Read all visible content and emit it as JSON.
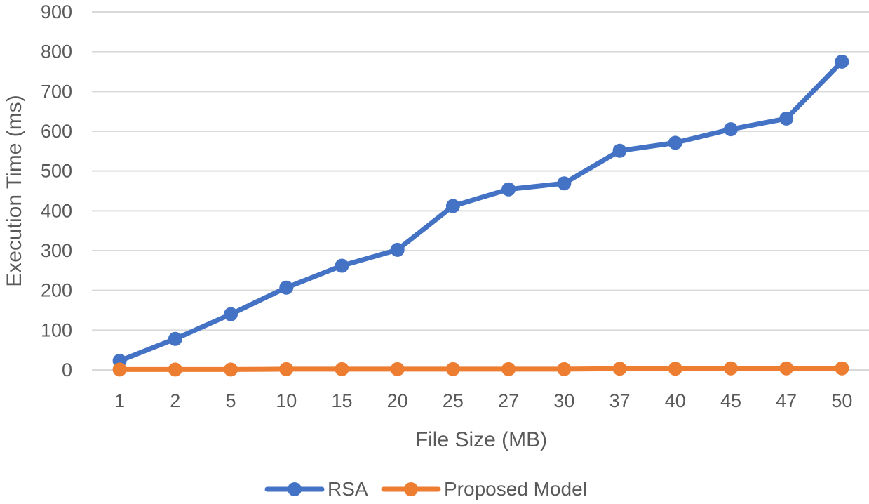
{
  "chart_data": {
    "type": "line",
    "categories": [
      "1",
      "2",
      "5",
      "10",
      "15",
      "20",
      "25",
      "27",
      "30",
      "37",
      "40",
      "45",
      "47",
      "50"
    ],
    "series": [
      {
        "name": "RSA",
        "color": "#4472c4",
        "values": [
          23,
          78,
          140,
          207,
          262,
          302,
          412,
          454,
          469,
          551,
          571,
          605,
          632,
          775
        ]
      },
      {
        "name": "Proposed Model",
        "color": "#ed7d31",
        "values": [
          1,
          1,
          1,
          2,
          2,
          2,
          2,
          2,
          2,
          3,
          3,
          4,
          4,
          4
        ]
      }
    ],
    "xlabel": "File Size (MB)",
    "ylabel": "Execution Time (ms)",
    "ylim": [
      0,
      900
    ],
    "yticks": [
      "0",
      "100",
      "200",
      "300",
      "400",
      "500",
      "600",
      "700",
      "800",
      "900"
    ],
    "grid": true,
    "legend_position": "bottom"
  }
}
